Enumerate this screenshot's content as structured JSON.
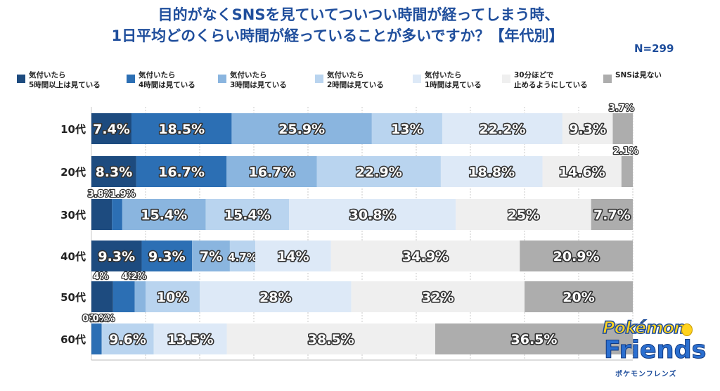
{
  "title_line1": "目的がなくSNSを見ていてついつい時間が経ってしまう時、",
  "title_line2": "1日平均どのくらい時間が経っていることが多いですか？【年代別】",
  "n_label": "N=299",
  "logo": {
    "brand": "Pokémon",
    "name": "Friends",
    "kana": "ポケモンフレンズ"
  },
  "chart_data": {
    "type": "bar",
    "stacked": true,
    "orientation": "horizontal",
    "percent_axis": [
      0,
      100
    ],
    "grid": true,
    "legend_position": "top",
    "categories": [
      "10代",
      "20代",
      "30代",
      "40代",
      "50代",
      "60代"
    ],
    "series": [
      {
        "name": "気付いたら\n5時間以上は見ている",
        "color": "#1d4b7f",
        "values": [
          7.4,
          8.3,
          3.8,
          9.3,
          4,
          0
        ],
        "labels": [
          "7.4%",
          "8.3%",
          "3.8%",
          "9.3%",
          "4%",
          "0%"
        ]
      },
      {
        "name": "気付いたら\n4時間は見ている",
        "color": "#2c6fb4",
        "values": [
          18.5,
          16.7,
          1.9,
          9.3,
          4,
          1.9
        ],
        "labels": [
          "18.5%",
          "16.7%",
          "1.9%",
          "9.3%",
          "4%",
          "1.9%"
        ]
      },
      {
        "name": "気付いたら\n3時間は見ている",
        "color": "#8ab5df",
        "values": [
          25.9,
          16.7,
          15.4,
          7,
          2,
          0
        ],
        "labels": [
          "25.9%",
          "16.7%",
          "15.4%",
          "7%",
          "2%",
          "0%"
        ]
      },
      {
        "name": "気付いたら\n2時間は見ている",
        "color": "#b9d4ef",
        "values": [
          13,
          22.9,
          15.4,
          4.7,
          10,
          9.6
        ],
        "labels": [
          "13%",
          "22.9%",
          "15.4%",
          "4.7%",
          "10%",
          "9.6%"
        ]
      },
      {
        "name": "気付いたら\n1時間は見ている",
        "color": "#dde9f7",
        "values": [
          22.2,
          18.8,
          30.8,
          14,
          28,
          13.5
        ],
        "labels": [
          "22.2%",
          "18.8%",
          "30.8%",
          "14%",
          "28%",
          "13.5%"
        ]
      },
      {
        "name": "30分ほどで\n止めるようにしている",
        "color": "#efefef",
        "values": [
          9.3,
          14.6,
          25,
          34.9,
          32,
          38.5
        ],
        "labels": [
          "9.3%",
          "14.6%",
          "25%",
          "34.9%",
          "32%",
          "38.5%"
        ]
      },
      {
        "name": "SNSは見ない",
        "color": "#adadad",
        "values": [
          3.7,
          2.1,
          7.7,
          20.9,
          20,
          36.5
        ],
        "labels": [
          "3.7%",
          "2.1%",
          "7.7%",
          "20.9%",
          "20%",
          "36.5%"
        ]
      }
    ]
  }
}
